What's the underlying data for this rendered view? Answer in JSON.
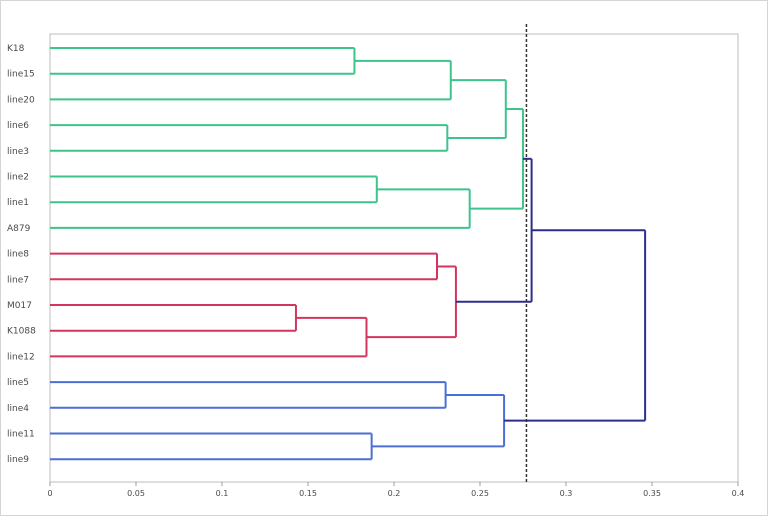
{
  "chart_data": {
    "type": "dendrogram",
    "title": "",
    "xlabel": "",
    "ylabel": "",
    "xlim": [
      0,
      0.4
    ],
    "x_ticks": [
      "0",
      "0.05",
      "0.1",
      "0.15",
      "0.2",
      "0.25",
      "0.3",
      "0.35",
      "0.4"
    ],
    "cut_height": 0.277,
    "leaves": [
      "K18",
      "line15",
      "line20",
      "line6",
      "line3",
      "line2",
      "line1",
      "A879",
      "line8",
      "line7",
      "M017",
      "K1088",
      "line12",
      "line5",
      "line4",
      "line11",
      "line9"
    ],
    "clusters": [
      {
        "color": "#3cc48c",
        "leaves": [
          "K18",
          "line15",
          "line20",
          "line6",
          "line3",
          "line2",
          "line1",
          "A879"
        ]
      },
      {
        "color": "#d4355f",
        "leaves": [
          "line8",
          "line7",
          "M017",
          "K1088",
          "line12"
        ]
      },
      {
        "color": "#4b6fd6",
        "leaves": [
          "line5",
          "line4",
          "line11",
          "line9"
        ]
      }
    ],
    "link_color": "#2e2e8c",
    "merges": [
      {
        "id": "m1",
        "children": [
          "K18",
          "line15"
        ],
        "height": 0.177,
        "color": "#3cc48c"
      },
      {
        "id": "m2",
        "children": [
          "m1",
          "line20"
        ],
        "height": 0.233,
        "color": "#3cc48c"
      },
      {
        "id": "m3",
        "children": [
          "line6",
          "line3"
        ],
        "height": 0.231,
        "color": "#3cc48c"
      },
      {
        "id": "m4",
        "children": [
          "m2",
          "m3"
        ],
        "height": 0.265,
        "color": "#3cc48c"
      },
      {
        "id": "m5",
        "children": [
          "line2",
          "line1"
        ],
        "height": 0.19,
        "color": "#3cc48c"
      },
      {
        "id": "m6",
        "children": [
          "m5",
          "A879"
        ],
        "height": 0.244,
        "color": "#3cc48c"
      },
      {
        "id": "m7",
        "children": [
          "m4",
          "m6"
        ],
        "height": 0.275,
        "color": "#3cc48c"
      },
      {
        "id": "m8",
        "children": [
          "line8",
          "line7"
        ],
        "height": 0.225,
        "color": "#d4355f"
      },
      {
        "id": "m9",
        "children": [
          "M017",
          "K1088"
        ],
        "height": 0.143,
        "color": "#d4355f"
      },
      {
        "id": "m10",
        "children": [
          "m9",
          "line12"
        ],
        "height": 0.184,
        "color": "#d4355f"
      },
      {
        "id": "m11",
        "children": [
          "m8",
          "m10"
        ],
        "height": 0.236,
        "color": "#d4355f"
      },
      {
        "id": "m12",
        "children": [
          "m7",
          "m11"
        ],
        "height": 0.28,
        "color": "#2e2e8c"
      },
      {
        "id": "m13",
        "children": [
          "line5",
          "line4"
        ],
        "height": 0.23,
        "color": "#4b6fd6"
      },
      {
        "id": "m14",
        "children": [
          "line11",
          "line9"
        ],
        "height": 0.187,
        "color": "#4b6fd6"
      },
      {
        "id": "m15",
        "children": [
          "m13",
          "m14"
        ],
        "height": 0.264,
        "color": "#4b6fd6"
      },
      {
        "id": "m16",
        "children": [
          "m12",
          "m15"
        ],
        "height": 0.346,
        "color": "#2e2e8c"
      }
    ]
  }
}
